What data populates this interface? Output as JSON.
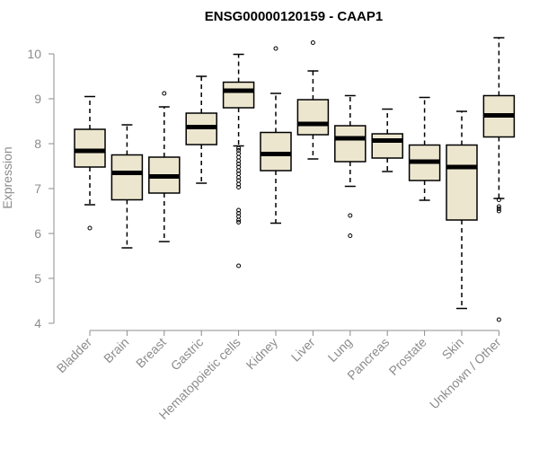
{
  "chart_data": {
    "type": "boxplot",
    "title": "ENSG00000120159 - CAAP1",
    "ylabel": "Expression",
    "xlabel": "",
    "ylim": [
      4,
      10
    ],
    "yticks": [
      4,
      5,
      6,
      7,
      8,
      9,
      10
    ],
    "box_fill": "#ede6cf",
    "categories": [
      "Bladder",
      "Brain",
      "Breast",
      "Gastric",
      "Hematopoietic cells",
      "Kidney",
      "Liver",
      "Lung",
      "Pancreas",
      "Prostate",
      "Skin",
      "Unknown / Other"
    ],
    "boxes": [
      {
        "q1": 7.48,
        "median": 7.84,
        "q3": 8.32,
        "whisker_low": 6.64,
        "whisker_high": 9.05,
        "outliers": [
          6.12
        ]
      },
      {
        "q1": 6.75,
        "median": 7.35,
        "q3": 7.75,
        "whisker_low": 5.68,
        "whisker_high": 8.42,
        "outliers": []
      },
      {
        "q1": 6.9,
        "median": 7.27,
        "q3": 7.7,
        "whisker_low": 5.82,
        "whisker_high": 8.82,
        "outliers": [
          9.12
        ]
      },
      {
        "q1": 7.98,
        "median": 8.37,
        "q3": 8.68,
        "whisker_low": 7.12,
        "whisker_high": 9.5,
        "outliers": []
      },
      {
        "q1": 8.8,
        "median": 9.18,
        "q3": 9.37,
        "whisker_low": 7.95,
        "whisker_high": 9.99,
        "outliers": [
          7.9,
          7.85,
          7.78,
          7.7,
          7.62,
          7.55,
          7.48,
          7.4,
          7.33,
          7.25,
          7.18,
          7.1,
          7.03,
          6.52,
          6.45,
          6.38,
          6.3,
          6.25,
          5.28
        ]
      },
      {
        "q1": 7.4,
        "median": 7.77,
        "q3": 8.25,
        "whisker_low": 6.23,
        "whisker_high": 9.12,
        "outliers": [
          10.12
        ]
      },
      {
        "q1": 8.2,
        "median": 8.44,
        "q3": 8.98,
        "whisker_low": 7.66,
        "whisker_high": 9.62,
        "outliers": [
          10.25
        ]
      },
      {
        "q1": 7.6,
        "median": 8.12,
        "q3": 8.4,
        "whisker_low": 7.05,
        "whisker_high": 9.07,
        "outliers": [
          6.4,
          5.95
        ]
      },
      {
        "q1": 7.68,
        "median": 8.07,
        "q3": 8.22,
        "whisker_low": 7.38,
        "whisker_high": 8.77,
        "outliers": []
      },
      {
        "q1": 7.18,
        "median": 7.6,
        "q3": 7.97,
        "whisker_low": 6.74,
        "whisker_high": 9.03,
        "outliers": []
      },
      {
        "q1": 6.3,
        "median": 7.48,
        "q3": 7.97,
        "whisker_low": 4.33,
        "whisker_high": 8.72,
        "outliers": []
      },
      {
        "q1": 8.15,
        "median": 8.63,
        "q3": 9.07,
        "whisker_low": 6.78,
        "whisker_high": 10.36,
        "outliers": [
          6.75,
          6.6,
          6.55,
          6.5,
          4.08
        ]
      }
    ]
  }
}
